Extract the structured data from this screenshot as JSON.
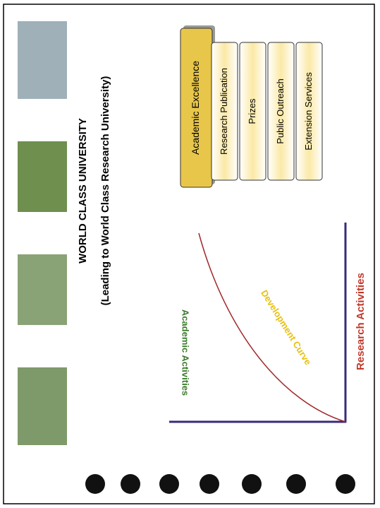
{
  "header": {
    "title": "WORLD CLASS UNIVERSITY",
    "subtitle": "(Leading to World Class Research University)"
  },
  "graph": {
    "y_label": "Academic Activities",
    "x_label": "Research Activities",
    "curve_label": "Development Curve"
  },
  "boxes": [
    "Academic Excellence",
    "Research Publication",
    "Prizes",
    "Public Outreach",
    "Extension Services"
  ]
}
